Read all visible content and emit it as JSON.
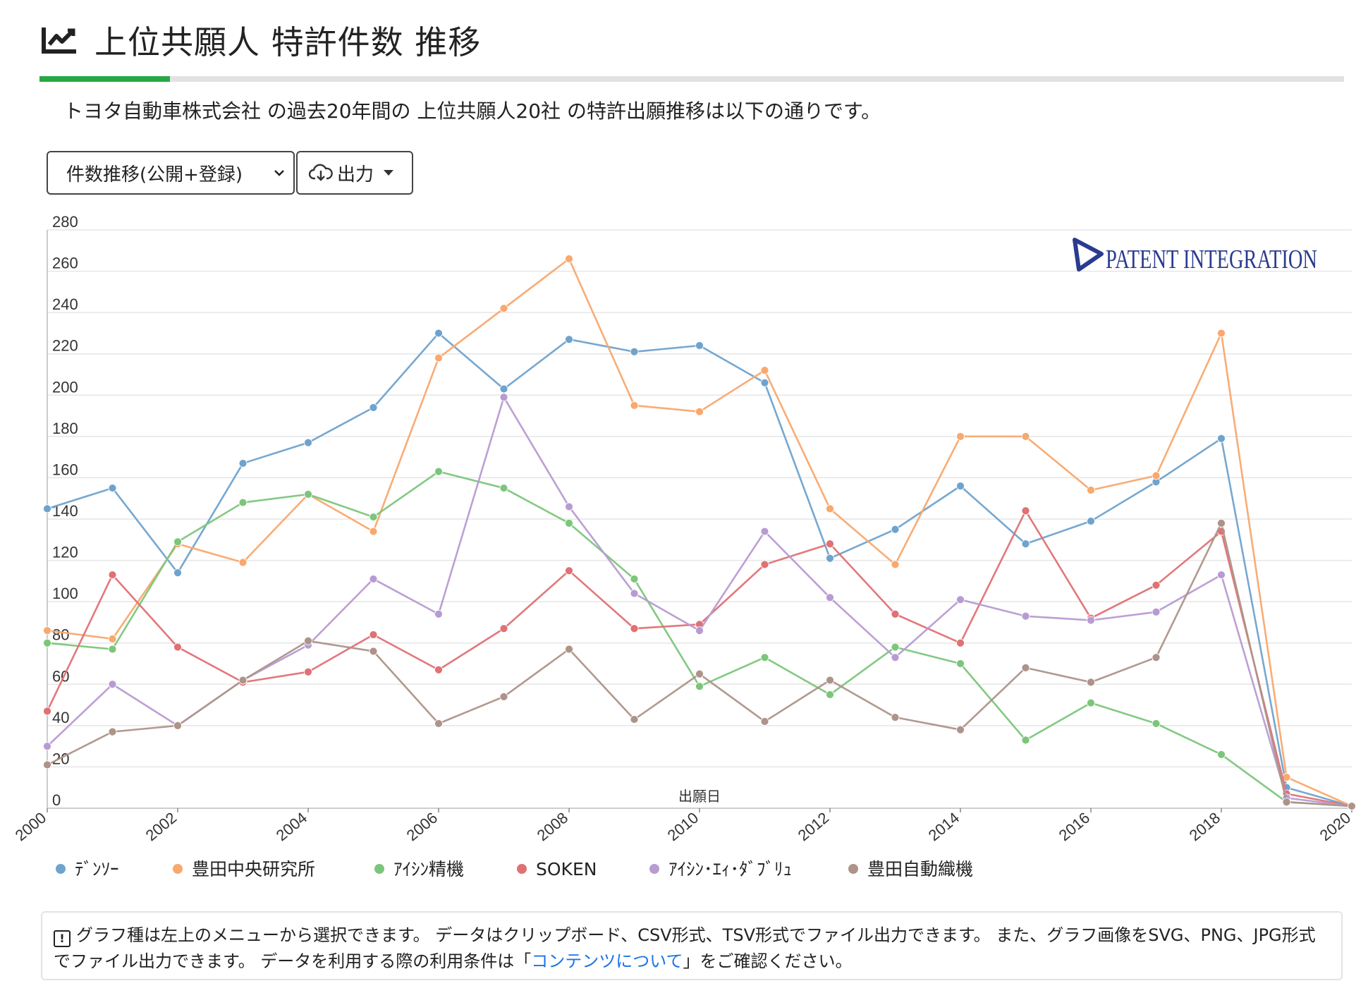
{
  "header": {
    "title": "上位共願人 特許件数 推移",
    "icon": "chart-line-icon"
  },
  "description": "トヨタ自動車株式会社 の過去20年間の 上位共願人20社 の特許出願推移は以下の通りです。",
  "controls": {
    "chart_type_select": "件数推移(公開+登録)",
    "export_button": "出力"
  },
  "watermark": "PATENT INTEGRATION",
  "notice": {
    "text1": "グラフ種は左上のメニューから選択できます。 データはクリップボード、CSV形式、TSV形式でファイル出力できます。 また、グラフ画像をSVG、PNG、JPG形式でファイル出力できます。 データを利用する際の利用条件は「",
    "link": "コンテンツについて",
    "text2": "」をご確認ください。"
  },
  "chart_data": {
    "type": "line",
    "xlabel": "出願日",
    "ylabel": "",
    "x": [
      2000,
      2001,
      2002,
      2003,
      2004,
      2005,
      2006,
      2007,
      2008,
      2009,
      2010,
      2011,
      2012,
      2013,
      2014,
      2015,
      2016,
      2017,
      2018,
      2019,
      2020
    ],
    "xticks": [
      "2000",
      "2002",
      "2004",
      "2006",
      "2008",
      "2010",
      "2012",
      "2014",
      "2016",
      "2018",
      "2020"
    ],
    "ylim": [
      0,
      280
    ],
    "yticks": [
      0,
      20,
      40,
      60,
      80,
      100,
      120,
      140,
      160,
      180,
      200,
      220,
      240,
      260,
      280
    ],
    "grid": true,
    "legend": "bottom",
    "series": [
      {
        "name": "ﾃﾞﾝｿｰ",
        "color": "#6fa3cd",
        "values": [
          145,
          155,
          114,
          167,
          177,
          194,
          230,
          203,
          227,
          221,
          224,
          206,
          121,
          135,
          156,
          128,
          139,
          158,
          179,
          10,
          1
        ]
      },
      {
        "name": "豊田中央研究所",
        "color": "#f9a86e",
        "values": [
          86,
          82,
          128,
          119,
          152,
          134,
          218,
          242,
          266,
          195,
          192,
          212,
          145,
          118,
          180,
          180,
          154,
          161,
          230,
          15,
          1
        ]
      },
      {
        "name": "ｱｲｼﾝ精機",
        "color": "#7cc67b",
        "values": [
          80,
          77,
          129,
          148,
          152,
          141,
          163,
          155,
          138,
          111,
          59,
          73,
          55,
          78,
          70,
          33,
          51,
          41,
          26,
          3,
          1
        ]
      },
      {
        "name": "SOKEN",
        "color": "#e07174",
        "values": [
          47,
          113,
          78,
          61,
          66,
          84,
          67,
          87,
          115,
          87,
          89,
          118,
          128,
          94,
          80,
          144,
          92,
          108,
          134,
          7,
          1
        ]
      },
      {
        "name": "ｱｲｼﾝ･ｴｨ･ﾀﾞﾌﾞﾘｭ",
        "color": "#b89bd3",
        "values": [
          30,
          60,
          40,
          62,
          79,
          111,
          94,
          199,
          146,
          104,
          86,
          134,
          102,
          73,
          101,
          93,
          91,
          95,
          113,
          5,
          1
        ]
      },
      {
        "name": "豊田自動織機",
        "color": "#ad9389",
        "values": [
          21,
          37,
          40,
          62,
          81,
          76,
          41,
          54,
          77,
          43,
          65,
          42,
          62,
          44,
          38,
          68,
          61,
          73,
          138,
          3,
          1
        ]
      }
    ]
  }
}
